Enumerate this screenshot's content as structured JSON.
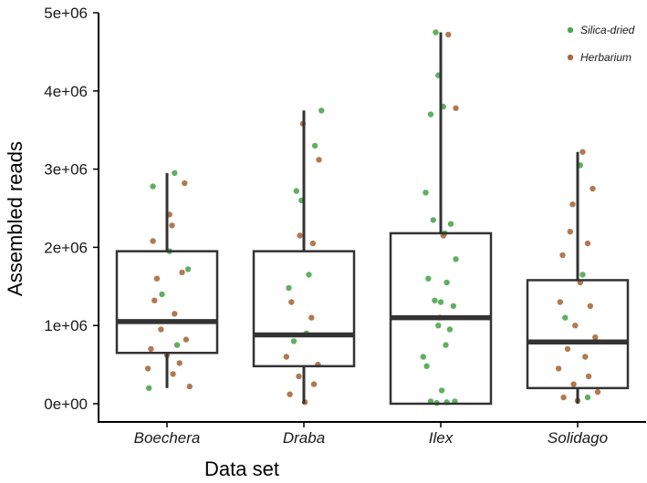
{
  "chart_data": {
    "type": "boxplot",
    "title": "",
    "xlabel": "Data set",
    "ylabel": "Assembled reads",
    "ylim": [
      0,
      5000000
    ],
    "yticks": [
      0,
      1000000,
      2000000,
      3000000,
      4000000,
      5000000
    ],
    "ytick_labels": [
      "0e+00",
      "1e+06",
      "2e+06",
      "3e+06",
      "4e+06",
      "5e+06"
    ],
    "categories": [
      "Boechera",
      "Draba",
      "Ilex",
      "Solidago"
    ],
    "colors": {
      "Silica-dried": "#4fa64f",
      "Herbarium": "#a86a3e",
      "box": "#333333"
    },
    "legend": {
      "position": "top-right",
      "entries": [
        {
          "name": "Silica-dried",
          "color": "#4fa64f"
        },
        {
          "name": "Herbarium",
          "color": "#a86a3e"
        }
      ]
    },
    "boxes": [
      {
        "category": "Boechera",
        "min": 200000,
        "q1": 650000,
        "median": 1050000,
        "q3": 1950000,
        "max": 2950000
      },
      {
        "category": "Draba",
        "min": 0,
        "q1": 480000,
        "median": 880000,
        "q3": 1950000,
        "max": 3750000
      },
      {
        "category": "Ilex",
        "min": 0,
        "q1": 0,
        "median": 1100000,
        "q3": 2180000,
        "max": 4750000
      },
      {
        "category": "Solidago",
        "min": 0,
        "q1": 200000,
        "median": 790000,
        "q3": 1580000,
        "max": 3220000
      }
    ],
    "points": [
      {
        "category": "Boechera",
        "group": "Silica-dried",
        "jitter": 0.15,
        "value": 2950000
      },
      {
        "category": "Boechera",
        "group": "Silica-dried",
        "jitter": -0.28,
        "value": 2780000
      },
      {
        "category": "Boechera",
        "group": "Silica-dried",
        "jitter": 0.05,
        "value": 1950000
      },
      {
        "category": "Boechera",
        "group": "Silica-dried",
        "jitter": 0.42,
        "value": 1720000
      },
      {
        "category": "Boechera",
        "group": "Silica-dried",
        "jitter": -0.1,
        "value": 1400000
      },
      {
        "category": "Boechera",
        "group": "Silica-dried",
        "jitter": -0.36,
        "value": 200000
      },
      {
        "category": "Boechera",
        "group": "Silica-dried",
        "jitter": 0.2,
        "value": 750000
      },
      {
        "category": "Boechera",
        "group": "Herbarium",
        "jitter": 0.35,
        "value": 2820000
      },
      {
        "category": "Boechera",
        "group": "Herbarium",
        "jitter": 0.05,
        "value": 2420000
      },
      {
        "category": "Boechera",
        "group": "Herbarium",
        "jitter": 0.1,
        "value": 2280000
      },
      {
        "category": "Boechera",
        "group": "Herbarium",
        "jitter": -0.28,
        "value": 2080000
      },
      {
        "category": "Boechera",
        "group": "Herbarium",
        "jitter": 0.3,
        "value": 1680000
      },
      {
        "category": "Boechera",
        "group": "Herbarium",
        "jitter": -0.2,
        "value": 1600000
      },
      {
        "category": "Boechera",
        "group": "Herbarium",
        "jitter": -0.25,
        "value": 1320000
      },
      {
        "category": "Boechera",
        "group": "Herbarium",
        "jitter": 0.15,
        "value": 1150000
      },
      {
        "category": "Boechera",
        "group": "Herbarium",
        "jitter": -0.12,
        "value": 950000
      },
      {
        "category": "Boechera",
        "group": "Herbarium",
        "jitter": 0.38,
        "value": 820000
      },
      {
        "category": "Boechera",
        "group": "Herbarium",
        "jitter": -0.32,
        "value": 700000
      },
      {
        "category": "Boechera",
        "group": "Herbarium",
        "jitter": 0.0,
        "value": 620000
      },
      {
        "category": "Boechera",
        "group": "Herbarium",
        "jitter": 0.25,
        "value": 520000
      },
      {
        "category": "Boechera",
        "group": "Herbarium",
        "jitter": -0.38,
        "value": 450000
      },
      {
        "category": "Boechera",
        "group": "Herbarium",
        "jitter": 0.12,
        "value": 380000
      },
      {
        "category": "Boechera",
        "group": "Herbarium",
        "jitter": 0.45,
        "value": 220000
      },
      {
        "category": "Draba",
        "group": "Silica-dried",
        "jitter": 0.22,
        "value": 3300000
      },
      {
        "category": "Draba",
        "group": "Silica-dried",
        "jitter": -0.15,
        "value": 2720000
      },
      {
        "category": "Draba",
        "group": "Silica-dried",
        "jitter": -0.05,
        "value": 2600000
      },
      {
        "category": "Draba",
        "group": "Silica-dried",
        "jitter": 0.1,
        "value": 1650000
      },
      {
        "category": "Draba",
        "group": "Silica-dried",
        "jitter": -0.3,
        "value": 1480000
      },
      {
        "category": "Draba",
        "group": "Silica-dried",
        "jitter": 0.05,
        "value": 900000
      },
      {
        "category": "Draba",
        "group": "Silica-dried",
        "jitter": -0.2,
        "value": 800000
      },
      {
        "category": "Draba",
        "group": "Silica-dried",
        "jitter": 0.35,
        "value": 3750000
      },
      {
        "category": "Draba",
        "group": "Herbarium",
        "jitter": -0.02,
        "value": 3580000
      },
      {
        "category": "Draba",
        "group": "Herbarium",
        "jitter": 0.3,
        "value": 3120000
      },
      {
        "category": "Draba",
        "group": "Herbarium",
        "jitter": -0.08,
        "value": 2150000
      },
      {
        "category": "Draba",
        "group": "Herbarium",
        "jitter": 0.18,
        "value": 2050000
      },
      {
        "category": "Draba",
        "group": "Herbarium",
        "jitter": -0.25,
        "value": 1300000
      },
      {
        "category": "Draba",
        "group": "Herbarium",
        "jitter": 0.15,
        "value": 1100000
      },
      {
        "category": "Draba",
        "group": "Herbarium",
        "jitter": -0.35,
        "value": 600000
      },
      {
        "category": "Draba",
        "group": "Herbarium",
        "jitter": 0.28,
        "value": 500000
      },
      {
        "category": "Draba",
        "group": "Herbarium",
        "jitter": -0.1,
        "value": 350000
      },
      {
        "category": "Draba",
        "group": "Herbarium",
        "jitter": 0.2,
        "value": 250000
      },
      {
        "category": "Draba",
        "group": "Herbarium",
        "jitter": -0.28,
        "value": 120000
      },
      {
        "category": "Draba",
        "group": "Herbarium",
        "jitter": 0.02,
        "value": 20000
      },
      {
        "category": "Ilex",
        "group": "Silica-dried",
        "jitter": -0.1,
        "value": 4750000
      },
      {
        "category": "Ilex",
        "group": "Silica-dried",
        "jitter": -0.05,
        "value": 4200000
      },
      {
        "category": "Ilex",
        "group": "Silica-dried",
        "jitter": -0.2,
        "value": 3700000
      },
      {
        "category": "Ilex",
        "group": "Silica-dried",
        "jitter": 0.05,
        "value": 3800000
      },
      {
        "category": "Ilex",
        "group": "Silica-dried",
        "jitter": -0.3,
        "value": 2700000
      },
      {
        "category": "Ilex",
        "group": "Silica-dried",
        "jitter": -0.15,
        "value": 2350000
      },
      {
        "category": "Ilex",
        "group": "Silica-dried",
        "jitter": 0.2,
        "value": 2300000
      },
      {
        "category": "Ilex",
        "group": "Silica-dried",
        "jitter": 0.08,
        "value": 2180000
      },
      {
        "category": "Ilex",
        "group": "Silica-dried",
        "jitter": 0.3,
        "value": 1850000
      },
      {
        "category": "Ilex",
        "group": "Silica-dried",
        "jitter": -0.25,
        "value": 1600000
      },
      {
        "category": "Ilex",
        "group": "Silica-dried",
        "jitter": 0.12,
        "value": 1550000
      },
      {
        "category": "Ilex",
        "group": "Silica-dried",
        "jitter": -0.12,
        "value": 1320000
      },
      {
        "category": "Ilex",
        "group": "Silica-dried",
        "jitter": 0.0,
        "value": 1300000
      },
      {
        "category": "Ilex",
        "group": "Silica-dried",
        "jitter": 0.25,
        "value": 1250000
      },
      {
        "category": "Ilex",
        "group": "Silica-dried",
        "jitter": -0.05,
        "value": 1000000
      },
      {
        "category": "Ilex",
        "group": "Silica-dried",
        "jitter": 0.18,
        "value": 950000
      },
      {
        "category": "Ilex",
        "group": "Silica-dried",
        "jitter": -0.35,
        "value": 600000
      },
      {
        "category": "Ilex",
        "group": "Silica-dried",
        "jitter": 0.1,
        "value": 750000
      },
      {
        "category": "Ilex",
        "group": "Silica-dried",
        "jitter": -0.28,
        "value": 480000
      },
      {
        "category": "Ilex",
        "group": "Silica-dried",
        "jitter": 0.02,
        "value": 170000
      },
      {
        "category": "Ilex",
        "group": "Silica-dried",
        "jitter": -0.2,
        "value": 30000
      },
      {
        "category": "Ilex",
        "group": "Silica-dried",
        "jitter": 0.12,
        "value": 20000
      },
      {
        "category": "Ilex",
        "group": "Silica-dried",
        "jitter": 0.28,
        "value": 30000
      },
      {
        "category": "Ilex",
        "group": "Silica-dried",
        "jitter": -0.08,
        "value": 10000
      },
      {
        "category": "Ilex",
        "group": "Herbarium",
        "jitter": 0.15,
        "value": 4720000
      },
      {
        "category": "Ilex",
        "group": "Herbarium",
        "jitter": 0.3,
        "value": 3780000
      },
      {
        "category": "Ilex",
        "group": "Herbarium",
        "jitter": 0.05,
        "value": 2150000
      },
      {
        "category": "Ilex",
        "group": "Herbarium",
        "jitter": -0.02,
        "value": 1100000
      },
      {
        "category": "Solidago",
        "group": "Silica-dried",
        "jitter": 0.05,
        "value": 3050000
      },
      {
        "category": "Solidago",
        "group": "Silica-dried",
        "jitter": 0.1,
        "value": 1650000
      },
      {
        "category": "Solidago",
        "group": "Silica-dried",
        "jitter": -0.25,
        "value": 1100000
      },
      {
        "category": "Solidago",
        "group": "Silica-dried",
        "jitter": 0.2,
        "value": 80000
      },
      {
        "category": "Solidago",
        "group": "Herbarium",
        "jitter": 0.1,
        "value": 3220000
      },
      {
        "category": "Solidago",
        "group": "Herbarium",
        "jitter": 0.3,
        "value": 2750000
      },
      {
        "category": "Solidago",
        "group": "Herbarium",
        "jitter": -0.1,
        "value": 2550000
      },
      {
        "category": "Solidago",
        "group": "Herbarium",
        "jitter": -0.15,
        "value": 2200000
      },
      {
        "category": "Solidago",
        "group": "Herbarium",
        "jitter": 0.2,
        "value": 2050000
      },
      {
        "category": "Solidago",
        "group": "Herbarium",
        "jitter": -0.3,
        "value": 1900000
      },
      {
        "category": "Solidago",
        "group": "Herbarium",
        "jitter": 0.05,
        "value": 1550000
      },
      {
        "category": "Solidago",
        "group": "Herbarium",
        "jitter": -0.35,
        "value": 1300000
      },
      {
        "category": "Solidago",
        "group": "Herbarium",
        "jitter": 0.25,
        "value": 1250000
      },
      {
        "category": "Solidago",
        "group": "Herbarium",
        "jitter": -0.05,
        "value": 1000000
      },
      {
        "category": "Solidago",
        "group": "Herbarium",
        "jitter": 0.35,
        "value": 850000
      },
      {
        "category": "Solidago",
        "group": "Herbarium",
        "jitter": -0.2,
        "value": 700000
      },
      {
        "category": "Solidago",
        "group": "Herbarium",
        "jitter": 0.15,
        "value": 600000
      },
      {
        "category": "Solidago",
        "group": "Herbarium",
        "jitter": -0.38,
        "value": 450000
      },
      {
        "category": "Solidago",
        "group": "Herbarium",
        "jitter": 0.22,
        "value": 350000
      },
      {
        "category": "Solidago",
        "group": "Herbarium",
        "jitter": -0.08,
        "value": 250000
      },
      {
        "category": "Solidago",
        "group": "Herbarium",
        "jitter": 0.4,
        "value": 150000
      },
      {
        "category": "Solidago",
        "group": "Herbarium",
        "jitter": -0.28,
        "value": 80000
      },
      {
        "category": "Solidago",
        "group": "Herbarium",
        "jitter": 0.0,
        "value": 40000
      }
    ]
  }
}
